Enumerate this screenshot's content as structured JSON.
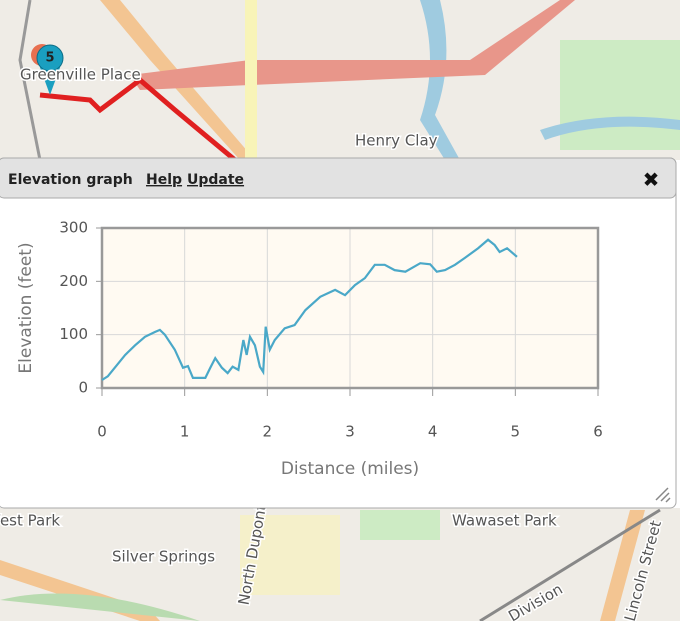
{
  "map": {
    "top_labels": [
      "Greenville Place",
      "Henry Clay"
    ],
    "bottom_labels": [
      "West Park",
      "Silver Springs",
      "Wawaset Park",
      "North Dupont",
      "Division",
      "Lincoln Street"
    ],
    "marker": "5"
  },
  "panel": {
    "title": "Elevation graph",
    "links": [
      "Help",
      "Update"
    ],
    "close": "✖"
  },
  "chart_data": {
    "type": "line",
    "xlabel": "Distance (miles)",
    "ylabel": "Elevation (feet)",
    "x": [
      0,
      0.07,
      0.28,
      0.4,
      0.52,
      0.64,
      0.7,
      0.76,
      0.88,
      0.98,
      1.04,
      1.1,
      1.25,
      1.31,
      1.37,
      1.45,
      1.52,
      1.58,
      1.65,
      1.71,
      1.75,
      1.79,
      1.85,
      1.91,
      1.95,
      1.98,
      2.03,
      2.09,
      2.21,
      2.33,
      2.46,
      2.64,
      2.82,
      2.94,
      3.06,
      3.18,
      3.3,
      3.42,
      3.54,
      3.67,
      3.85,
      3.97,
      4.05,
      4.15,
      4.27,
      4.39,
      4.55,
      4.67,
      4.75,
      4.81,
      4.9,
      5.02
    ],
    "values": [
      15,
      22,
      62,
      80,
      96,
      105,
      109,
      100,
      72,
      38,
      41,
      19,
      19,
      38,
      56,
      38,
      28,
      40,
      34,
      90,
      62,
      96,
      80,
      40,
      30,
      115,
      72,
      90,
      112,
      118,
      146,
      171,
      184,
      174,
      193,
      206,
      231,
      231,
      221,
      218,
      234,
      232,
      218,
      221,
      231,
      244,
      262,
      278,
      268,
      255,
      262,
      246
    ],
    "color": "#4aa8c8",
    "xlim": [
      0,
      6
    ],
    "xticks": [
      0,
      1,
      2,
      3,
      4,
      5,
      6
    ],
    "ylim": [
      0,
      300
    ],
    "yticks": [
      0,
      100,
      200,
      300
    ],
    "grid": true
  }
}
